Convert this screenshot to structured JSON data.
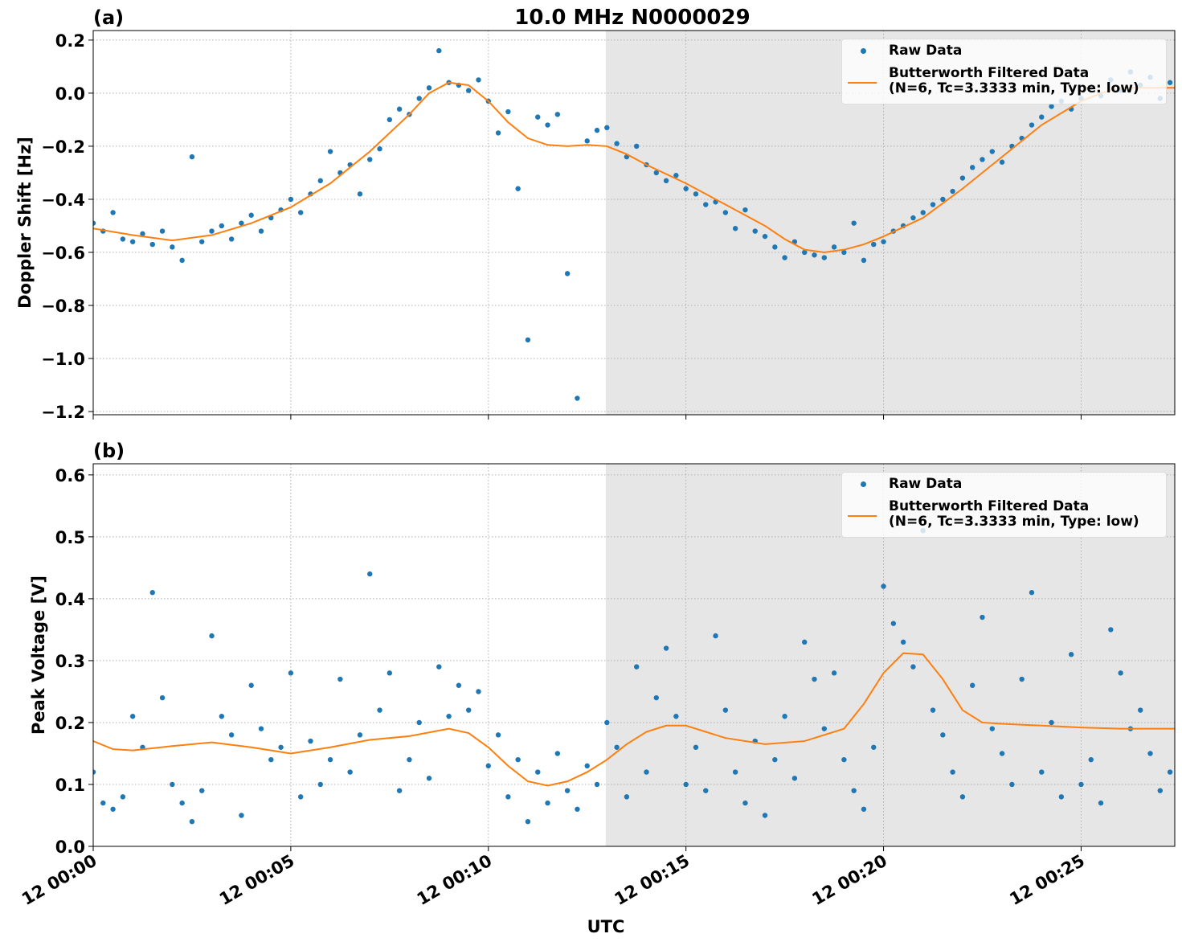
{
  "chart_data": [
    {
      "type": "line",
      "title": "10.0 MHz N0000029",
      "panel_label": "(a)",
      "y_label": "Doppler Shift [Hz]",
      "xlim": [
        0,
        27.37
      ],
      "xticks": [
        0,
        5,
        10,
        15,
        20,
        25
      ],
      "ylim": [
        -1.212,
        0.236
      ],
      "yticks": [
        {
          "value": -1.2,
          "label": "−1.2"
        },
        {
          "value": -1.0,
          "label": "−1.0"
        },
        {
          "value": -0.8,
          "label": "−0.8"
        },
        {
          "value": -0.6,
          "label": "−0.6"
        },
        {
          "value": -0.4,
          "label": "−0.4"
        },
        {
          "value": -0.2,
          "label": "−0.2"
        },
        {
          "value": 0,
          "label": "0.0"
        },
        {
          "value": 0.2,
          "label": "0.2"
        }
      ],
      "grid": true,
      "legend": "upper right",
      "shaded_span": [
        12.97,
        27.37
      ],
      "series": [
        {
          "name": "Raw Data",
          "color": "#1f77b4",
          "style": "markers",
          "x": [
            0,
            0.25,
            0.5,
            0.75,
            1,
            1.25,
            1.5,
            1.75,
            2,
            2.25,
            2.5,
            2.75,
            3,
            3.25,
            3.5,
            3.75,
            4,
            4.25,
            4.5,
            4.75,
            5,
            5.25,
            5.5,
            5.75,
            6,
            6.25,
            6.5,
            6.75,
            7,
            7.25,
            7.5,
            7.75,
            8,
            8.25,
            8.5,
            8.75,
            9,
            9.25,
            9.5,
            9.75,
            10,
            10.25,
            10.5,
            10.75,
            11,
            11.25,
            11.5,
            11.75,
            12,
            12.25,
            12.5,
            12.75,
            13,
            13.25,
            13.5,
            13.75,
            14,
            14.25,
            14.5,
            14.75,
            15,
            15.25,
            15.5,
            15.75,
            16,
            16.25,
            16.5,
            16.75,
            17,
            17.25,
            17.5,
            17.75,
            18,
            18.25,
            18.5,
            18.75,
            19,
            19.25,
            19.5,
            19.75,
            20,
            20.25,
            20.5,
            20.75,
            21,
            21.25,
            21.5,
            21.75,
            22,
            22.25,
            22.5,
            22.75,
            23,
            23.25,
            23.5,
            23.75,
            24,
            24.25,
            24.5,
            24.75,
            25,
            25.25,
            25.5,
            25.75,
            26,
            26.25,
            26.5,
            26.75,
            27,
            27.25
          ],
          "values": [
            -0.49,
            -0.52,
            -0.45,
            -0.55,
            -0.56,
            -0.53,
            -0.57,
            -0.52,
            -0.58,
            -0.63,
            -0.24,
            -0.56,
            -0.52,
            -0.5,
            -0.55,
            -0.49,
            -0.46,
            -0.52,
            -0.47,
            -0.44,
            -0.4,
            -0.45,
            -0.38,
            -0.33,
            -0.22,
            -0.3,
            -0.27,
            -0.38,
            -0.25,
            -0.21,
            -0.1,
            -0.06,
            -0.08,
            -0.02,
            0.02,
            0.16,
            0.04,
            0.03,
            0.01,
            0.05,
            -0.03,
            -0.15,
            -0.07,
            -0.36,
            -0.93,
            -0.09,
            -0.12,
            -0.08,
            -0.68,
            -1.15,
            -0.18,
            -0.14,
            -0.13,
            -0.19,
            -0.24,
            -0.2,
            -0.27,
            -0.3,
            -0.33,
            -0.31,
            -0.36,
            -0.38,
            -0.42,
            -0.41,
            -0.45,
            -0.51,
            -0.44,
            -0.52,
            -0.54,
            -0.58,
            -0.62,
            -0.56,
            -0.6,
            -0.61,
            -0.62,
            -0.58,
            -0.6,
            -0.49,
            -0.63,
            -0.57,
            -0.56,
            -0.52,
            -0.5,
            -0.47,
            -0.45,
            -0.42,
            -0.4,
            -0.37,
            -0.32,
            -0.28,
            -0.25,
            -0.22,
            -0.26,
            -0.2,
            -0.17,
            -0.12,
            -0.09,
            -0.05,
            -0.03,
            -0.06,
            -0.02,
            0.02,
            -0.01,
            0.05,
            0.01,
            0.08,
            0.03,
            0.06,
            -0.02,
            0.04
          ]
        },
        {
          "name": "Butterworth Filtered Data\n(N=6, Tc=3.3333 min, Type: low)",
          "color": "#ff7f0e",
          "style": "line",
          "x": [
            0,
            1,
            2,
            3,
            4,
            5,
            6,
            7,
            8,
            8.5,
            9,
            9.5,
            10,
            10.5,
            11,
            11.5,
            12,
            12.5,
            13,
            13.5,
            14,
            15,
            16,
            17,
            17.5,
            18,
            18.5,
            19,
            19.5,
            20,
            21,
            22,
            23,
            24,
            25,
            25.5,
            26,
            26.5,
            27,
            27.37
          ],
          "values": [
            -0.51,
            -0.535,
            -0.555,
            -0.535,
            -0.49,
            -0.43,
            -0.34,
            -0.22,
            -0.08,
            0.0,
            0.04,
            0.03,
            -0.03,
            -0.11,
            -0.17,
            -0.195,
            -0.2,
            -0.195,
            -0.2,
            -0.23,
            -0.27,
            -0.34,
            -0.42,
            -0.5,
            -0.55,
            -0.59,
            -0.6,
            -0.59,
            -0.57,
            -0.54,
            -0.47,
            -0.36,
            -0.24,
            -0.12,
            -0.03,
            0.0,
            0.02,
            0.02,
            0.02,
            0.02
          ]
        }
      ]
    },
    {
      "type": "line",
      "panel_label": "(b)",
      "y_label": "Peak Voltage [V]",
      "x_label": "UTC",
      "xlim": [
        0,
        27.37
      ],
      "xticks": [
        {
          "value": 0,
          "label": "12 00:00"
        },
        {
          "value": 5,
          "label": "12 00:05"
        },
        {
          "value": 10,
          "label": "12 00:10"
        },
        {
          "value": 15,
          "label": "12 00:15"
        },
        {
          "value": 20,
          "label": "12 00:20"
        },
        {
          "value": 25,
          "label": "12 00:25"
        }
      ],
      "ylim": [
        0,
        0.618
      ],
      "yticks": [
        {
          "value": 0,
          "label": "0.0"
        },
        {
          "value": 0.1,
          "label": "0.1"
        },
        {
          "value": 0.2,
          "label": "0.2"
        },
        {
          "value": 0.3,
          "label": "0.3"
        },
        {
          "value": 0.4,
          "label": "0.4"
        },
        {
          "value": 0.5,
          "label": "0.5"
        },
        {
          "value": 0.6,
          "label": "0.6"
        }
      ],
      "grid": true,
      "legend": "upper right",
      "shaded_span": [
        12.97,
        27.37
      ],
      "series": [
        {
          "name": "Raw Data",
          "color": "#1f77b4",
          "style": "markers",
          "x": [
            0,
            0.25,
            0.5,
            0.75,
            1,
            1.25,
            1.5,
            1.75,
            2,
            2.25,
            2.5,
            2.75,
            3,
            3.25,
            3.5,
            3.75,
            4,
            4.25,
            4.5,
            4.75,
            5,
            5.25,
            5.5,
            5.75,
            6,
            6.25,
            6.5,
            6.75,
            7,
            7.25,
            7.5,
            7.75,
            8,
            8.25,
            8.5,
            8.75,
            9,
            9.25,
            9.5,
            9.75,
            10,
            10.25,
            10.5,
            10.75,
            11,
            11.25,
            11.5,
            11.75,
            12,
            12.25,
            12.5,
            12.75,
            13,
            13.25,
            13.5,
            13.75,
            14,
            14.25,
            14.5,
            14.75,
            15,
            15.25,
            15.5,
            15.75,
            16,
            16.25,
            16.5,
            16.75,
            17,
            17.25,
            17.5,
            17.75,
            18,
            18.25,
            18.5,
            18.75,
            19,
            19.25,
            19.5,
            19.75,
            20,
            20.25,
            20.5,
            20.75,
            21,
            21.25,
            21.5,
            21.75,
            22,
            22.25,
            22.5,
            22.75,
            23,
            23.25,
            23.5,
            23.75,
            24,
            24.25,
            24.5,
            24.75,
            25,
            25.25,
            25.5,
            25.75,
            26,
            26.25,
            26.5,
            26.75,
            27,
            27.25
          ],
          "values": [
            0.12,
            0.07,
            0.06,
            0.08,
            0.21,
            0.16,
            0.41,
            0.24,
            0.1,
            0.07,
            0.04,
            0.09,
            0.34,
            0.21,
            0.18,
            0.05,
            0.26,
            0.19,
            0.14,
            0.16,
            0.28,
            0.08,
            0.17,
            0.1,
            0.14,
            0.27,
            0.12,
            0.18,
            0.44,
            0.22,
            0.28,
            0.09,
            0.14,
            0.2,
            0.11,
            0.29,
            0.21,
            0.26,
            0.22,
            0.25,
            0.13,
            0.18,
            0.08,
            0.14,
            0.04,
            0.12,
            0.07,
            0.15,
            0.09,
            0.06,
            0.13,
            0.1,
            0.2,
            0.16,
            0.08,
            0.29,
            0.12,
            0.24,
            0.32,
            0.21,
            0.1,
            0.16,
            0.09,
            0.34,
            0.22,
            0.12,
            0.07,
            0.17,
            0.05,
            0.14,
            0.21,
            0.11,
            0.33,
            0.27,
            0.19,
            0.28,
            0.14,
            0.09,
            0.06,
            0.16,
            0.42,
            0.36,
            0.33,
            0.29,
            0.51,
            0.22,
            0.18,
            0.12,
            0.08,
            0.26,
            0.37,
            0.19,
            0.15,
            0.1,
            0.27,
            0.41,
            0.12,
            0.2,
            0.08,
            0.31,
            0.1,
            0.14,
            0.07,
            0.35,
            0.28,
            0.19,
            0.22,
            0.15,
            0.09,
            0.12
          ]
        },
        {
          "name": "Butterworth Filtered Data\n(N=6, Tc=3.3333 min, Type: low)",
          "color": "#ff7f0e",
          "style": "line",
          "x": [
            0,
            0.5,
            1,
            2,
            3,
            4,
            5,
            6,
            7,
            8,
            9,
            9.5,
            10,
            10.5,
            11,
            11.5,
            12,
            12.5,
            13,
            13.5,
            14,
            14.5,
            15,
            16,
            17,
            18,
            19,
            19.5,
            20,
            20.5,
            21,
            21.5,
            22,
            22.5,
            23,
            24,
            25,
            26,
            27.37
          ],
          "values": [
            0.17,
            0.157,
            0.155,
            0.162,
            0.168,
            0.16,
            0.15,
            0.16,
            0.172,
            0.178,
            0.19,
            0.183,
            0.16,
            0.13,
            0.105,
            0.098,
            0.105,
            0.12,
            0.14,
            0.165,
            0.185,
            0.195,
            0.195,
            0.175,
            0.165,
            0.17,
            0.19,
            0.23,
            0.28,
            0.312,
            0.31,
            0.27,
            0.22,
            0.2,
            0.198,
            0.195,
            0.192,
            0.19,
            0.19
          ]
        }
      ]
    }
  ]
}
